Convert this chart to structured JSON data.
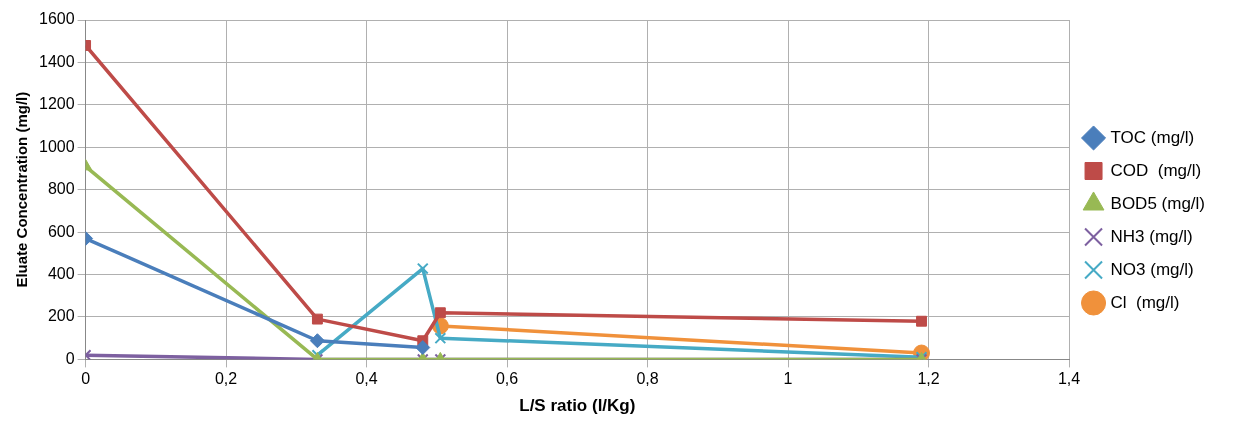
{
  "chart_data": {
    "type": "line",
    "xlabel": "L/S ratio (l/Kg)",
    "ylabel": "Eluate Concentration (mg/l)",
    "xlim": [
      0,
      1.4
    ],
    "xticks": [
      {
        "value": 0,
        "label": "0"
      },
      {
        "value": 0.2,
        "label": "0,2"
      },
      {
        "value": 0.4,
        "label": "0,4"
      },
      {
        "value": 0.6,
        "label": "0,6"
      },
      {
        "value": 0.8,
        "label": "0,8"
      },
      {
        "value": 1,
        "label": "1"
      },
      {
        "value": 1.2,
        "label": "1,2"
      },
      {
        "value": 1.4,
        "label": "1,4"
      }
    ],
    "ylim": [
      0,
      1600
    ],
    "yticks": [
      0,
      200,
      400,
      600,
      800,
      1000,
      1200,
      1400,
      1600
    ],
    "grid": true,
    "legend": "right",
    "line_style": "solid",
    "series": [
      {
        "name": "TOC (mg/l)",
        "color": "#4a7ebb",
        "marker": "diamond",
        "x": [
          0,
          0.33,
          0.48
        ],
        "values": [
          570,
          88,
          56
        ]
      },
      {
        "name": "COD  (mg/l)",
        "color": "#be4b48",
        "marker": "square",
        "x": [
          0,
          0.33,
          0.48,
          0.505,
          1.19
        ],
        "values": [
          1480,
          190,
          88,
          220,
          180
        ]
      },
      {
        "name": "BOD5 (mg/l)",
        "color": "#98b954",
        "marker": "triangle",
        "x": [
          0,
          0.33,
          0.48,
          0.505,
          1.19
        ],
        "values": [
          910,
          0,
          0,
          0,
          0
        ]
      },
      {
        "name": "NH3 (mg/l)",
        "color": "#7d60a0",
        "marker": "cross",
        "x": [
          0,
          0.33,
          0.48,
          0.505,
          1.19
        ],
        "values": [
          20,
          0,
          0,
          0,
          0
        ]
      },
      {
        "name": "NO3 (mg/l)",
        "color": "#46aac5",
        "marker": "cross",
        "x": [
          0.33,
          0.48,
          0.505,
          1.19
        ],
        "values": [
          20,
          428,
          100,
          10
        ]
      },
      {
        "name": "Cl  (mg/l)",
        "color": "#f0913b",
        "marker": "circle",
        "x": [
          0.505,
          1.19
        ],
        "values": [
          158,
          30
        ]
      }
    ]
  }
}
